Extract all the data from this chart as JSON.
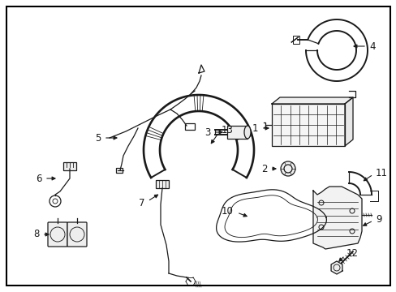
{
  "background_color": "#ffffff",
  "border_color": "#000000",
  "line_color": "#1a1a1a",
  "label_color": "#000000",
  "fig_width": 4.89,
  "fig_height": 3.6,
  "dpi": 100,
  "label_fontsize": 8.5,
  "lw": 0.9
}
